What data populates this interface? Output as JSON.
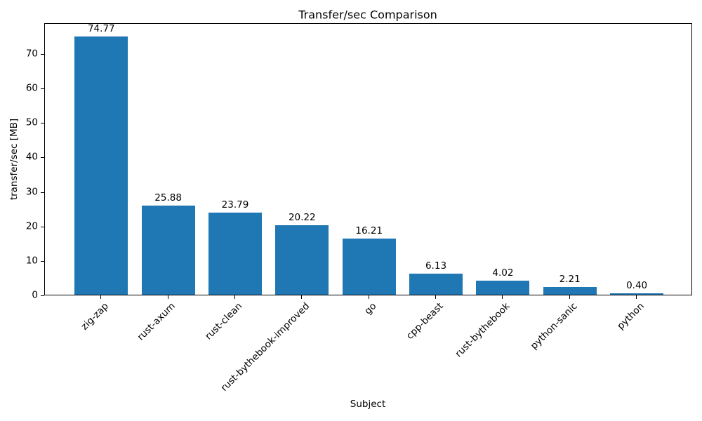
{
  "chart_data": {
    "type": "bar",
    "title": "Transfer/sec Comparison",
    "xlabel": "Subject",
    "ylabel": "transfer/sec [MB]",
    "categories": [
      "zig-zap",
      "rust-axum",
      "rust-clean",
      "rust-bythebook-improved",
      "go",
      "cpp-beast",
      "rust-bythebook",
      "python-sanic",
      "python"
    ],
    "values": [
      74.77,
      25.88,
      23.79,
      20.22,
      16.21,
      6.13,
      4.02,
      2.21,
      0.4
    ],
    "value_labels": [
      "74.77",
      "25.88",
      "23.79",
      "20.22",
      "16.21",
      "6.13",
      "4.02",
      "2.21",
      "0.40"
    ],
    "y_ticks": [
      0,
      10,
      20,
      30,
      40,
      50,
      60,
      70
    ],
    "y_tick_labels": [
      "0",
      "10",
      "20",
      "30",
      "40",
      "50",
      "60",
      "70"
    ],
    "ylim": [
      0,
      78.9
    ],
    "bar_color": "#1f77b4",
    "axis_color": "#000000",
    "grid": false,
    "legend": null,
    "x_tick_rotation_deg": 45
  }
}
